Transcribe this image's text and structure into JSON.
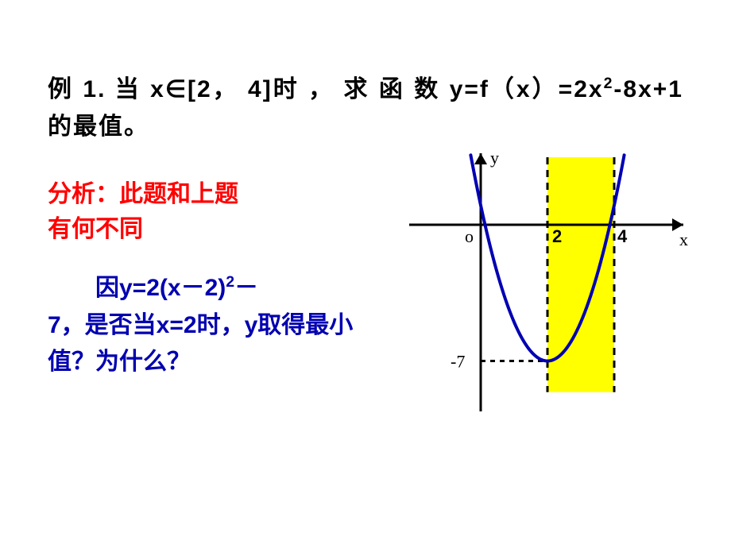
{
  "problem": {
    "prefix": "例 1. 当 x∈[2， 4]时 ， 求 函 数 y=f（x）=2x",
    "exp": "2",
    "suffix": "-8x+1的最值。"
  },
  "analysis": {
    "line1": "分析：此题和上题",
    "line2": "有何不同"
  },
  "detail": {
    "line1_a": "因y=2(x－2)",
    "line1_exp": "2",
    "line1_b": "－",
    "line2": "7，是否当x=2时，y取得最小值？为什么？"
  },
  "chart": {
    "axis_y_label": "y",
    "axis_x_label": "x",
    "origin_label": "o",
    "x_ticks": [
      "2",
      "4"
    ],
    "vertex_y_label": "-7",
    "colors": {
      "axis": "#000000",
      "highlight": "#ffff00",
      "curve": "#0000b3",
      "dashed": "#000000",
      "labels": "#000000"
    },
    "parabola": {
      "vertex_x": 2,
      "vertex_y": -7,
      "a": 2
    },
    "domain_box": {
      "x_from": 2,
      "x_to": 4
    },
    "stroke_width_curve": 4,
    "stroke_width_axis": 3,
    "font_size_labels": 22
  }
}
